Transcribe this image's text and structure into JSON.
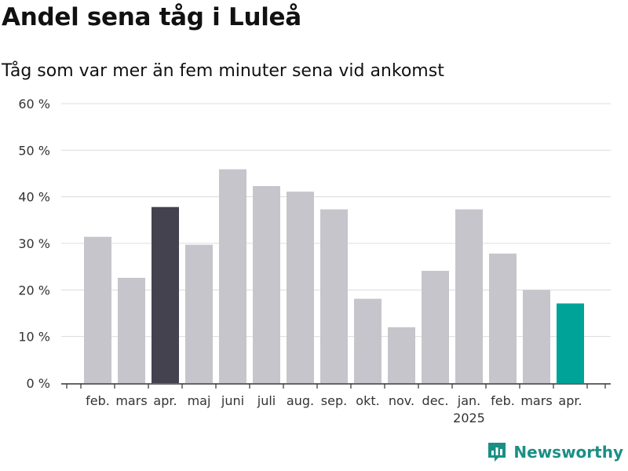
{
  "title": "Andel sena tåg i Luleå",
  "subtitle": "Tåg som var mer än fem minuter sena vid ankomst",
  "brand": "Newsworthy",
  "colors": {
    "default_bar": "#c6c5cb",
    "highlight_dark": "#43424e",
    "highlight_accent": "#00a398",
    "grid": "#dcdcdc",
    "brand": "#1a8f86"
  },
  "chart_data": {
    "type": "bar",
    "categories": [
      "feb.",
      "mars",
      "apr.",
      "maj",
      "juni",
      "juli",
      "aug.",
      "sep.",
      "okt.",
      "nov.",
      "dec.",
      "jan.",
      "feb.",
      "mars",
      "apr."
    ],
    "year_labels": [
      {
        "index": 11,
        "label": "2025"
      }
    ],
    "values": [
      31.4,
      22.6,
      37.8,
      29.7,
      45.9,
      42.3,
      41.1,
      37.3,
      18.1,
      12.0,
      24.1,
      37.3,
      27.8,
      20.0,
      17.1
    ],
    "highlight": [
      {
        "index": 2,
        "color": "highlight_dark"
      },
      {
        "index": 14,
        "color": "highlight_accent"
      }
    ],
    "ylim": [
      0,
      60
    ],
    "yticks": [
      0,
      10,
      20,
      30,
      40,
      50,
      60
    ],
    "ytick_labels": [
      "0 %",
      "10 %",
      "20 %",
      "30 %",
      "40 %",
      "50 %",
      "60 %"
    ],
    "grid": true
  }
}
